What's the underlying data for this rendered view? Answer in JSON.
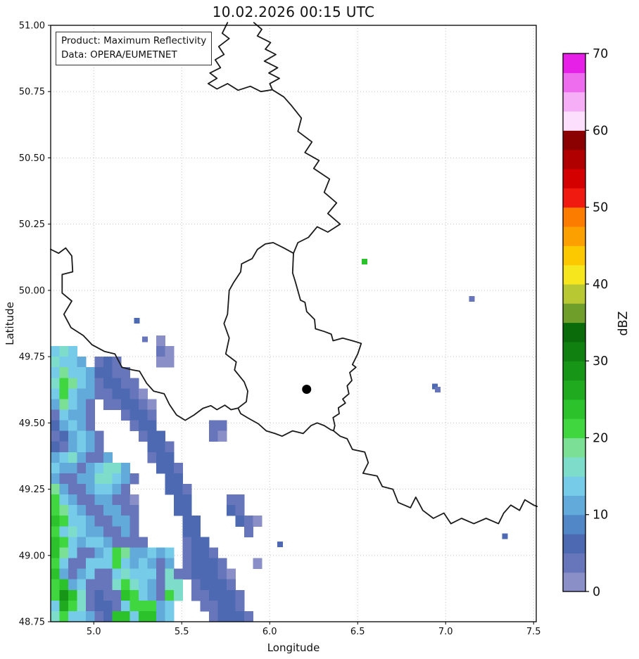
{
  "title": "10.02.2026 00:15 UTC",
  "info_box": {
    "product_line": "Product: Maximum Reflectivity",
    "data_line": "Data: OPERA/EUMETNET"
  },
  "axes": {
    "xlabel": "Longitude",
    "ylabel": "Latitude",
    "x_tick_labels": [
      "5.0",
      "5.5",
      "6.0",
      "6.5",
      "7.0",
      "7.5"
    ],
    "x_tick_values": [
      5.0,
      5.5,
      6.0,
      6.5,
      7.0,
      7.5
    ],
    "y_tick_labels": [
      "48.75",
      "49.00",
      "49.25",
      "49.50",
      "49.75",
      "50.00",
      "50.25",
      "50.50",
      "50.75",
      "51.00"
    ],
    "y_tick_values": [
      48.75,
      49.0,
      49.25,
      49.5,
      49.75,
      50.0,
      50.25,
      50.5,
      50.75,
      51.0
    ],
    "xlim": [
      4.755,
      7.515
    ],
    "ylim": [
      48.75,
      51.0
    ]
  },
  "colorbar": {
    "label": "dBZ",
    "tick_values": [
      0,
      10,
      20,
      30,
      40,
      50,
      60,
      70
    ],
    "vmin": 0,
    "vmax": 70,
    "step_dbz": 2.5,
    "colors": [
      "#8a90c7",
      "#6776ba",
      "#4d69b1",
      "#5187c6",
      "#62aad9",
      "#76cbe8",
      "#7edccb",
      "#7bdf95",
      "#3fd63f",
      "#2cc22c",
      "#1faa1f",
      "#179517",
      "#108010",
      "#0a6b0a",
      "#6f9e2a",
      "#b8c832",
      "#f5e61e",
      "#fcc800",
      "#fca000",
      "#fc7c00",
      "#f01a10",
      "#d40000",
      "#b00000",
      "#8b0000",
      "#fcdffc",
      "#f6aef6",
      "#ee6cee",
      "#e620e6"
    ]
  },
  "style_colors": {
    "background": "#ffffff",
    "border_line": "#1a1a1a",
    "grid_line": "#bdbdbd",
    "marker": "#000000"
  },
  "chart_data": {
    "type": "heatmap",
    "units": "dBZ",
    "title": "10.02.2026 00:15 UTC",
    "xlabel": "Longitude",
    "ylabel": "Latitude",
    "xlim": [
      4.755,
      7.515
    ],
    "ylim": [
      48.75,
      51.0
    ],
    "grid_on": true,
    "legend_position": "right-colorbar",
    "level_chars": "abcdefghijkl",
    "level_dbz_ranges": [
      [
        0,
        2.5
      ],
      [
        2.5,
        5
      ],
      [
        5,
        7.5
      ],
      [
        7.5,
        10
      ],
      [
        10,
        12.5
      ],
      [
        12.5,
        15
      ],
      [
        15,
        17.5
      ],
      [
        17.5,
        20
      ],
      [
        20,
        22.5
      ],
      [
        22.5,
        25
      ],
      [
        25,
        27.5
      ],
      [
        27.5,
        30
      ]
    ],
    "grid": {
      "lon0": 4.755,
      "lat_top": 49.83,
      "dlon": 0.05,
      "dlat": 0.04,
      "cols": 24,
      "rows": 27,
      "rows_data": [
        "............a...........",
        "fgf.........ba..........",
        "gffe.bcb....aa..........",
        "fhffeccbb...............",
        "gihfebccbb..............",
        "fifeebbccba.............",
        "ehfeb.bbccba............",
        "bfeeb...bccb............",
        "cefeb....bcc......bb....",
        "bcefeb....bcc.....ba....",
        "cbefeb.....ccb..........",
        "efgebbe....bcc..........",
        "feebefgge...ccb.........",
        "ebbeeggfeb...cc.........",
        "hebbeffeb....ccb........",
        "ifebbeebba....cc....bb..",
        "ihfebbeebb....cc....cb..",
        "jiffebbeeb.....cc....cba",
        "ifgfeebbeb.....cc.....b.",
        "jifeffebbbb....bcc......",
        "jhfbbefiheefef.bccb.....",
        "ifbbfffifefebe.bcccb...a",
        "jebefbbfgfffbgbbcccba...",
        "ijefbbbgigfebgg.bcccb...",
        "iljgbcbbjifebig.bbcccb..",
        "fkigbccbfiiief...bbccb..",
        "giffebcjjfjjef....bcccb."
      ]
    },
    "cells_extra": [
      [
        5.245,
        49.885,
        "c"
      ],
      [
        5.29,
        49.815,
        "b"
      ],
      [
        6.538,
        50.108,
        "j"
      ],
      [
        7.148,
        49.968,
        "b"
      ],
      [
        6.938,
        49.638,
        "c"
      ],
      [
        6.955,
        49.625,
        "b"
      ],
      [
        6.058,
        49.042,
        "c"
      ],
      [
        7.337,
        49.072,
        "c"
      ]
    ],
    "radar_marker": {
      "lon": 6.21,
      "lat": 49.627
    },
    "borders": [
      [
        [
          5.76,
          51.01
        ],
        [
          5.73,
          50.97
        ],
        [
          5.77,
          50.95
        ],
        [
          5.71,
          50.92
        ],
        [
          5.74,
          50.89
        ],
        [
          5.69,
          50.87
        ],
        [
          5.72,
          50.84
        ],
        [
          5.66,
          50.82
        ],
        [
          5.7,
          50.8
        ],
        [
          5.65,
          50.78
        ],
        [
          5.7,
          50.76
        ],
        [
          5.76,
          50.78
        ],
        [
          5.82,
          50.755
        ],
        [
          5.89,
          50.77
        ],
        [
          5.95,
          50.75
        ],
        [
          6.015,
          50.757
        ]
      ],
      [
        [
          5.91,
          51.01
        ],
        [
          5.955,
          50.985
        ],
        [
          5.93,
          50.96
        ],
        [
          6.005,
          50.935
        ],
        [
          5.975,
          50.91
        ],
        [
          6.035,
          50.89
        ],
        [
          5.97,
          50.865
        ],
        [
          6.045,
          50.84
        ],
        [
          5.995,
          50.82
        ],
        [
          6.055,
          50.8
        ],
        [
          6.0,
          50.78
        ],
        [
          6.015,
          50.757
        ]
      ],
      [
        [
          6.015,
          50.757
        ],
        [
          6.08,
          50.73
        ],
        [
          6.12,
          50.7
        ],
        [
          6.18,
          50.65
        ],
        [
          6.16,
          50.6
        ],
        [
          6.24,
          50.56
        ],
        [
          6.2,
          50.52
        ],
        [
          6.28,
          50.49
        ],
        [
          6.25,
          50.46
        ],
        [
          6.34,
          50.42
        ],
        [
          6.31,
          50.37
        ],
        [
          6.38,
          50.33
        ],
        [
          6.33,
          50.29
        ],
        [
          6.4,
          50.25
        ],
        [
          6.33,
          50.22
        ],
        [
          6.27,
          50.24
        ],
        [
          6.22,
          50.2
        ],
        [
          6.16,
          50.18
        ],
        [
          6.135,
          50.14
        ]
      ],
      [
        [
          6.02,
          50.18
        ],
        [
          5.975,
          50.175
        ],
        [
          5.93,
          50.154
        ],
        [
          5.9,
          50.12
        ],
        [
          5.84,
          50.1
        ],
        [
          5.835,
          50.07
        ],
        [
          5.795,
          50.03
        ],
        [
          5.77,
          50.0
        ],
        [
          5.76,
          49.91
        ],
        [
          5.74,
          49.875
        ],
        [
          5.77,
          49.82
        ],
        [
          5.75,
          49.76
        ],
        [
          5.81,
          49.73
        ],
        [
          5.8,
          49.7
        ],
        [
          5.855,
          49.655
        ],
        [
          5.875,
          49.62
        ],
        [
          5.867,
          49.58
        ],
        [
          5.82,
          49.556
        ],
        [
          5.835,
          49.535
        ],
        [
          5.88,
          49.517
        ],
        [
          5.935,
          49.497
        ],
        [
          5.98,
          49.47
        ],
        [
          6.03,
          49.46
        ],
        [
          6.07,
          49.45
        ],
        [
          6.13,
          49.47
        ],
        [
          6.19,
          49.46
        ],
        [
          6.235,
          49.49
        ],
        [
          6.27,
          49.5
        ],
        [
          6.31,
          49.49
        ],
        [
          6.345,
          49.475
        ],
        [
          6.363,
          49.47
        ],
        [
          6.37,
          49.49
        ],
        [
          6.36,
          49.52
        ],
        [
          6.395,
          49.535
        ],
        [
          6.39,
          49.557
        ],
        [
          6.43,
          49.575
        ],
        [
          6.415,
          49.59
        ],
        [
          6.45,
          49.61
        ],
        [
          6.44,
          49.64
        ],
        [
          6.467,
          49.66
        ],
        [
          6.455,
          49.69
        ],
        [
          6.49,
          49.71
        ],
        [
          6.47,
          49.72
        ],
        [
          6.5,
          49.76
        ],
        [
          6.52,
          49.8
        ],
        [
          6.47,
          49.81
        ],
        [
          6.415,
          49.82
        ],
        [
          6.36,
          49.81
        ],
        [
          6.35,
          49.835
        ],
        [
          6.31,
          49.845
        ],
        [
          6.26,
          49.855
        ],
        [
          6.255,
          49.89
        ],
        [
          6.21,
          49.92
        ],
        [
          6.2,
          49.955
        ],
        [
          6.175,
          49.963
        ],
        [
          6.147,
          50.03
        ],
        [
          6.13,
          50.066
        ],
        [
          6.135,
          50.14
        ],
        [
          6.08,
          50.16
        ],
        [
          6.02,
          50.18
        ]
      ],
      [
        [
          4.755,
          50.155
        ],
        [
          4.8,
          50.14
        ],
        [
          4.84,
          50.16
        ],
        [
          4.875,
          50.13
        ],
        [
          4.88,
          50.07
        ],
        [
          4.82,
          50.06
        ],
        [
          4.82,
          49.99
        ],
        [
          4.875,
          49.96
        ],
        [
          4.83,
          49.91
        ],
        [
          4.87,
          49.86
        ],
        [
          4.94,
          49.83
        ],
        [
          4.99,
          49.795
        ],
        [
          5.06,
          49.77
        ],
        [
          5.12,
          49.76
        ],
        [
          5.16,
          49.71
        ],
        [
          5.22,
          49.7
        ],
        [
          5.26,
          49.695
        ],
        [
          5.3,
          49.65
        ],
        [
          5.34,
          49.62
        ],
        [
          5.4,
          49.61
        ],
        [
          5.43,
          49.57
        ],
        [
          5.47,
          49.53
        ],
        [
          5.52,
          49.51
        ],
        [
          5.57,
          49.53
        ],
        [
          5.62,
          49.555
        ],
        [
          5.665,
          49.565
        ],
        [
          5.7,
          49.55
        ],
        [
          5.745,
          49.567
        ],
        [
          5.78,
          49.55
        ],
        [
          5.82,
          49.556
        ]
      ],
      [
        [
          6.363,
          49.47
        ],
        [
          6.4,
          49.45
        ],
        [
          6.44,
          49.44
        ],
        [
          6.47,
          49.4
        ],
        [
          6.54,
          49.39
        ],
        [
          6.56,
          49.35
        ],
        [
          6.53,
          49.31
        ],
        [
          6.61,
          49.3
        ],
        [
          6.64,
          49.26
        ],
        [
          6.7,
          49.25
        ],
        [
          6.73,
          49.2
        ],
        [
          6.8,
          49.18
        ],
        [
          6.83,
          49.22
        ],
        [
          6.87,
          49.17
        ],
        [
          6.93,
          49.14
        ],
        [
          6.99,
          49.16
        ],
        [
          7.03,
          49.12
        ],
        [
          7.09,
          49.14
        ],
        [
          7.16,
          49.12
        ],
        [
          7.23,
          49.14
        ],
        [
          7.3,
          49.12
        ],
        [
          7.33,
          49.16
        ],
        [
          7.37,
          49.19
        ],
        [
          7.42,
          49.17
        ],
        [
          7.45,
          49.21
        ],
        [
          7.5,
          49.19
        ],
        [
          7.52,
          49.185
        ]
      ]
    ]
  }
}
